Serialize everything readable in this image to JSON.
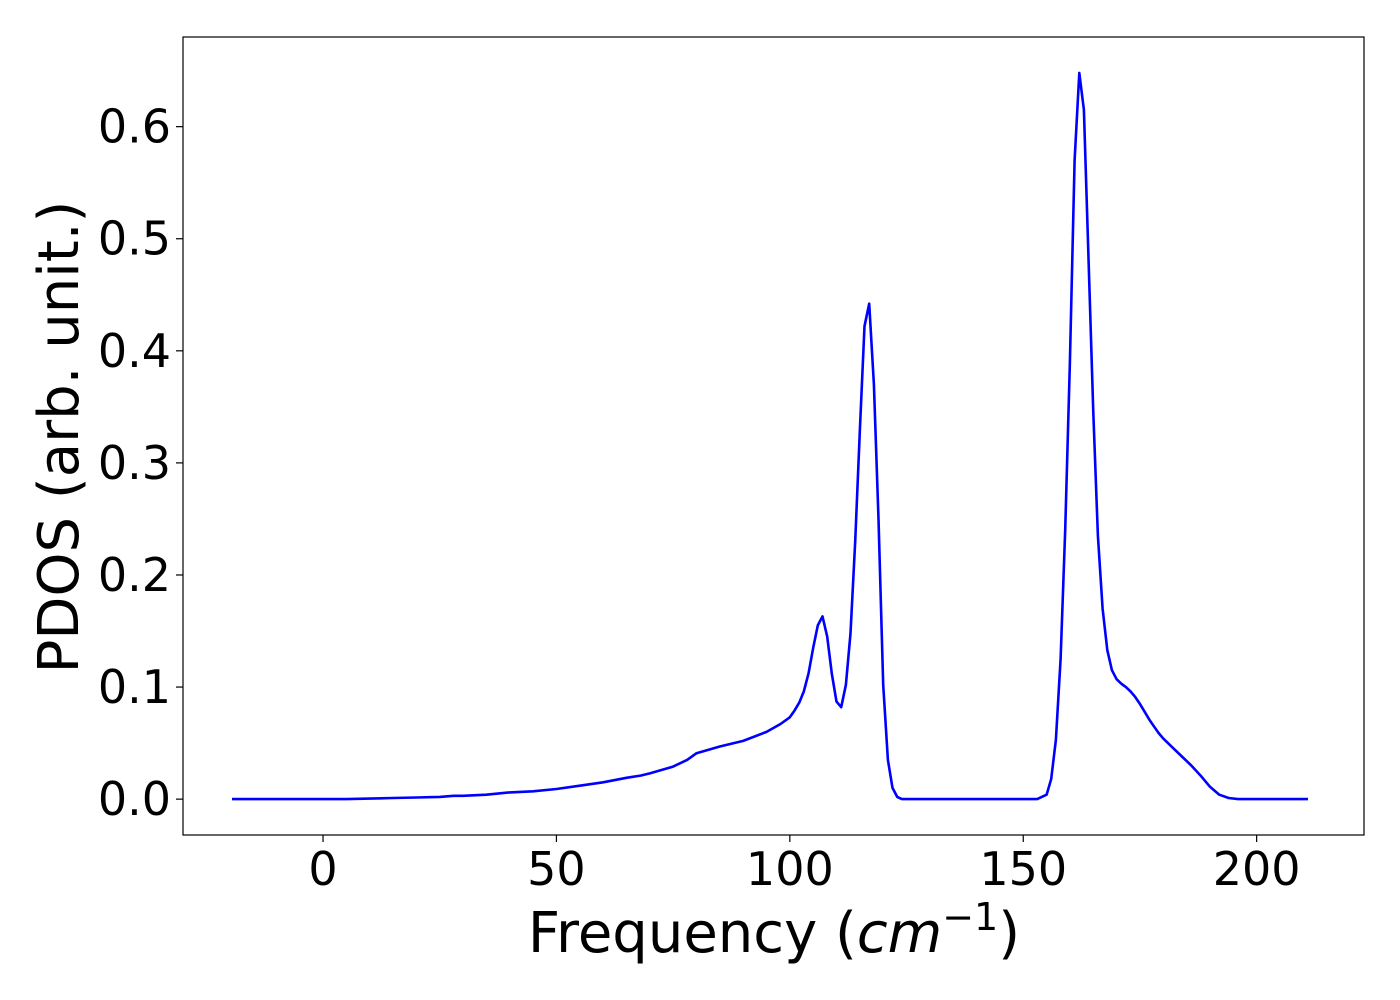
{
  "chart_data": {
    "type": "line",
    "title": "",
    "xlabel_prefix": "Frequency (",
    "xlabel_math": "cm",
    "xlabel_sup": "−1",
    "xlabel_suffix": ")",
    "ylabel": "PDOS (arb. unit.)",
    "xlim": [
      -30,
      223
    ],
    "ylim": [
      -0.032,
      0.68
    ],
    "xticks": [
      0,
      50,
      100,
      150,
      200
    ],
    "xtick_labels": [
      "0",
      "50",
      "100",
      "150",
      "200"
    ],
    "yticks": [
      0.0,
      0.1,
      0.2,
      0.3,
      0.4,
      0.5,
      0.6
    ],
    "ytick_labels": [
      "0.0",
      "0.1",
      "0.2",
      "0.3",
      "0.4",
      "0.5",
      "0.6"
    ],
    "grid": false,
    "series": [
      {
        "color": "#0000ff",
        "x": [
          -19.5,
          0,
          5,
          10,
          15,
          20,
          25,
          28,
          30,
          35,
          40,
          45,
          50,
          55,
          60,
          65,
          68,
          70,
          75,
          78,
          80,
          85,
          90,
          95,
          98,
          100,
          101,
          102,
          103,
          104,
          105,
          106,
          107,
          108,
          109,
          110,
          111,
          112,
          113,
          114,
          115,
          116,
          117,
          118,
          119,
          120,
          121,
          122,
          123,
          124,
          125,
          126,
          130,
          140,
          150,
          153,
          155,
          156,
          157,
          158,
          159,
          160,
          161,
          162,
          163,
          164,
          165,
          166,
          167,
          168,
          169,
          170,
          171,
          172,
          173,
          174,
          175,
          176,
          177,
          178,
          179,
          180,
          182,
          184,
          186,
          188,
          190,
          192,
          194,
          196,
          200,
          210,
          211
        ],
        "y": [
          0.0,
          0.0,
          0.0,
          0.0005,
          0.001,
          0.0015,
          0.002,
          0.003,
          0.003,
          0.004,
          0.006,
          0.007,
          0.009,
          0.012,
          0.015,
          0.019,
          0.021,
          0.023,
          0.029,
          0.035,
          0.041,
          0.047,
          0.052,
          0.06,
          0.067,
          0.073,
          0.079,
          0.086,
          0.096,
          0.112,
          0.135,
          0.155,
          0.163,
          0.145,
          0.112,
          0.087,
          0.082,
          0.102,
          0.148,
          0.23,
          0.33,
          0.422,
          0.442,
          0.37,
          0.25,
          0.102,
          0.035,
          0.01,
          0.002,
          0.0,
          0.0,
          0.0,
          0.0,
          0.0,
          0.0,
          0.0,
          0.004,
          0.018,
          0.053,
          0.125,
          0.24,
          0.39,
          0.57,
          0.648,
          0.615,
          0.48,
          0.345,
          0.235,
          0.17,
          0.133,
          0.115,
          0.107,
          0.103,
          0.1,
          0.096,
          0.091,
          0.085,
          0.078,
          0.071,
          0.065,
          0.059,
          0.054,
          0.046,
          0.038,
          0.03,
          0.021,
          0.011,
          0.004,
          0.001,
          0.0,
          0.0,
          0.0,
          0.0
        ]
      }
    ]
  }
}
